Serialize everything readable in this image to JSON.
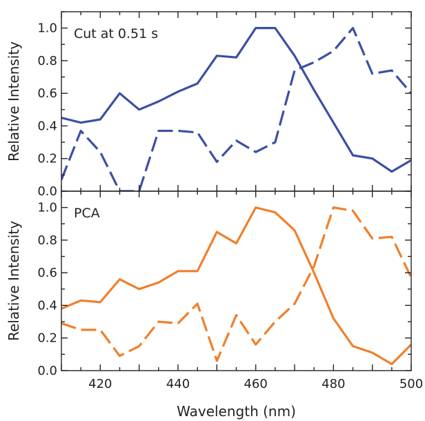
{
  "chart_data": [
    {
      "type": "line",
      "annotation": "Cut at 0.51 s",
      "xlabel": "",
      "ylabel": "Relative Intensity",
      "xlim": [
        410,
        500
      ],
      "ylim": [
        0,
        1.1
      ],
      "yticks": [
        0.0,
        0.2,
        0.4,
        0.6,
        0.8,
        1.0
      ],
      "ytick_labels": [
        "0.0",
        "0.2",
        "0.4",
        "0.6",
        "0.8",
        "1.0"
      ],
      "grid": false,
      "x": [
        410,
        415,
        420,
        425,
        430,
        435,
        440,
        445,
        450,
        455,
        460,
        465,
        470,
        475,
        480,
        485,
        490,
        495,
        500
      ],
      "series": [
        {
          "style": "solid",
          "color": "#3b4fa3",
          "values": [
            0.45,
            0.42,
            0.44,
            0.6,
            0.5,
            0.55,
            0.61,
            0.66,
            0.83,
            0.82,
            1.0,
            1.0,
            0.83,
            0.62,
            0.42,
            0.22,
            0.2,
            0.12,
            0.19
          ]
        },
        {
          "style": "dashed",
          "color": "#3b4fa3",
          "values": [
            0.07,
            0.37,
            0.24,
            0.0,
            0.0,
            0.37,
            0.37,
            0.36,
            0.18,
            0.31,
            0.24,
            0.3,
            0.74,
            0.79,
            0.86,
            1.0,
            0.72,
            0.74,
            0.6
          ]
        }
      ]
    },
    {
      "type": "line",
      "annotation": "PCA",
      "xlabel": "Wavelength (nm)",
      "ylabel": "Relative Intensity",
      "xlim": [
        410,
        500
      ],
      "ylim": [
        0,
        1.1
      ],
      "xticks": [
        420,
        440,
        460,
        480,
        500
      ],
      "xtick_labels": [
        "420",
        "440",
        "460",
        "480",
        "500"
      ],
      "yticks": [
        0.0,
        0.2,
        0.4,
        0.6,
        0.8,
        1.0
      ],
      "ytick_labels": [
        "0.0",
        "0.2",
        "0.4",
        "0.6",
        "0.8",
        "1.0"
      ],
      "grid": false,
      "x": [
        410,
        415,
        420,
        425,
        430,
        435,
        440,
        445,
        450,
        455,
        460,
        465,
        470,
        475,
        480,
        485,
        490,
        495,
        500
      ],
      "series": [
        {
          "style": "solid",
          "color": "#f07f2a",
          "values": [
            0.38,
            0.43,
            0.42,
            0.56,
            0.5,
            0.54,
            0.61,
            0.61,
            0.85,
            0.78,
            1.0,
            0.97,
            0.86,
            0.6,
            0.32,
            0.15,
            0.11,
            0.04,
            0.16
          ]
        },
        {
          "style": "dashed",
          "color": "#f07f2a",
          "values": [
            0.29,
            0.25,
            0.25,
            0.09,
            0.15,
            0.3,
            0.29,
            0.41,
            0.06,
            0.34,
            0.16,
            0.3,
            0.41,
            0.64,
            1.0,
            0.98,
            0.81,
            0.82,
            0.57
          ]
        }
      ]
    }
  ]
}
